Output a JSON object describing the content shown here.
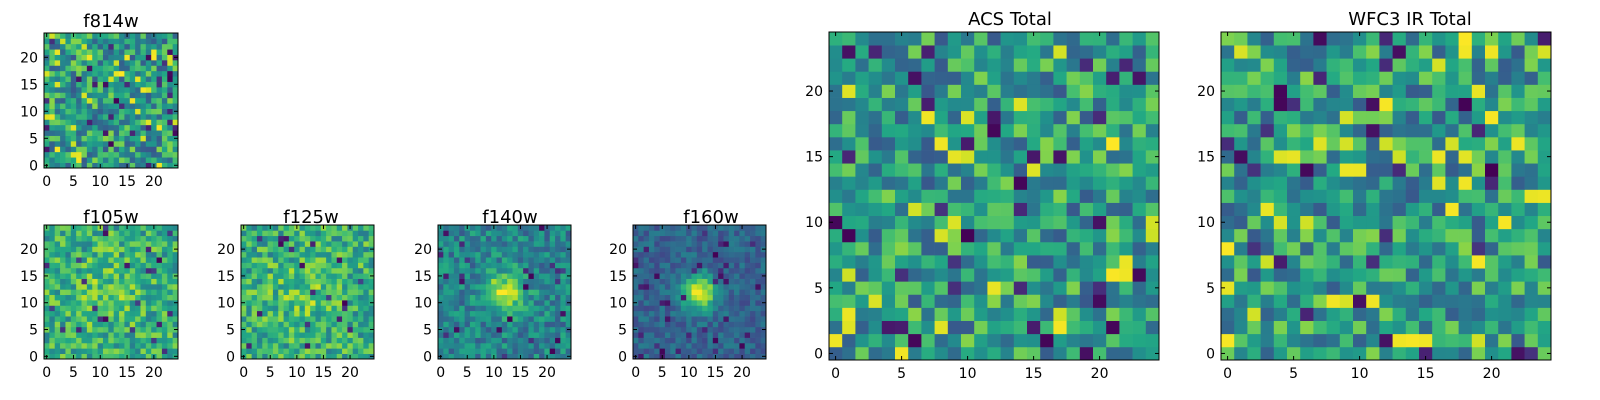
{
  "figure": {
    "colormap": "viridis"
  },
  "chart_data": [
    {
      "type": "heatmap",
      "id": "f814w",
      "title": "f814w",
      "grid_size": 25,
      "xlim": [
        -0.5,
        24.5
      ],
      "ylim": [
        -0.5,
        24.5
      ],
      "xticks": [
        0,
        5,
        10,
        15,
        20
      ],
      "yticks": [
        0,
        5,
        10,
        15,
        20
      ],
      "xtick_labels": [
        "0",
        "5",
        "10",
        "15",
        "20"
      ],
      "ytick_labels": [
        "0",
        "5",
        "10",
        "15",
        "20"
      ],
      "pattern": "noise",
      "value_range": [
        0,
        1
      ]
    },
    {
      "type": "heatmap",
      "id": "f105w",
      "title": "f105w",
      "grid_size": 25,
      "xlim": [
        -0.5,
        24.5
      ],
      "ylim": [
        -0.5,
        24.5
      ],
      "xticks": [
        0,
        5,
        10,
        15,
        20
      ],
      "yticks": [
        0,
        5,
        10,
        15,
        20
      ],
      "xtick_labels": [
        "0",
        "5",
        "10",
        "15",
        "20"
      ],
      "ytick_labels": [
        "0",
        "5",
        "10",
        "15",
        "20"
      ],
      "pattern": "faint-source",
      "value_range": [
        0,
        1
      ]
    },
    {
      "type": "heatmap",
      "id": "f125w",
      "title": "f125w",
      "grid_size": 25,
      "xlim": [
        -0.5,
        24.5
      ],
      "ylim": [
        -0.5,
        24.5
      ],
      "xticks": [
        0,
        5,
        10,
        15,
        20
      ],
      "yticks": [
        0,
        5,
        10,
        15,
        20
      ],
      "xtick_labels": [
        "0",
        "5",
        "10",
        "15",
        "20"
      ],
      "ytick_labels": [
        "0",
        "5",
        "10",
        "15",
        "20"
      ],
      "pattern": "faint-source",
      "value_range": [
        0,
        1
      ]
    },
    {
      "type": "heatmap",
      "id": "f140w",
      "title": "f140w",
      "grid_size": 25,
      "xlim": [
        -0.5,
        24.5
      ],
      "ylim": [
        -0.5,
        24.5
      ],
      "xticks": [
        0,
        5,
        10,
        15,
        20
      ],
      "yticks": [
        0,
        5,
        10,
        15,
        20
      ],
      "xtick_labels": [
        "0",
        "5",
        "10",
        "15",
        "20"
      ],
      "ytick_labels": [
        "0",
        "5",
        "10",
        "15",
        "20"
      ],
      "pattern": "central-source",
      "source_center": [
        12,
        12
      ],
      "value_range": [
        0,
        1
      ]
    },
    {
      "type": "heatmap",
      "id": "f160w",
      "title": "f160w",
      "grid_size": 25,
      "xlim": [
        -0.5,
        24.5
      ],
      "ylim": [
        -0.5,
        24.5
      ],
      "xticks": [
        0,
        5,
        10,
        15,
        20
      ],
      "yticks": [
        0,
        5,
        10,
        15,
        20
      ],
      "xtick_labels": [
        "0",
        "5",
        "10",
        "15",
        "20"
      ],
      "ytick_labels": [
        "0",
        "5",
        "10",
        "15",
        "20"
      ],
      "pattern": "bright-central-source",
      "source_center": [
        12,
        12
      ],
      "value_range": [
        0,
        1
      ]
    },
    {
      "type": "heatmap",
      "id": "acs_total",
      "title": "ACS Total",
      "grid_size": 25,
      "xlim": [
        -0.5,
        24.5
      ],
      "ylim": [
        -0.5,
        24.5
      ],
      "xticks": [
        0,
        5,
        10,
        15,
        20
      ],
      "yticks": [
        0,
        5,
        10,
        15,
        20
      ],
      "xtick_labels": [
        "0",
        "5",
        "10",
        "15",
        "20"
      ],
      "ytick_labels": [
        "0",
        "5",
        "10",
        "15",
        "20"
      ],
      "pattern": "noise",
      "value_range": [
        0,
        1
      ]
    },
    {
      "type": "heatmap",
      "id": "wfc3_ir_total",
      "title": "WFC3 IR Total",
      "grid_size": 25,
      "xlim": [
        -0.5,
        24.5
      ],
      "ylim": [
        -0.5,
        24.5
      ],
      "xticks": [
        0,
        5,
        10,
        15,
        20
      ],
      "yticks": [
        0,
        5,
        10,
        15,
        20
      ],
      "xtick_labels": [
        "0",
        "5",
        "10",
        "15",
        "20"
      ],
      "ytick_labels": [
        "0",
        "5",
        "10",
        "15",
        "20"
      ],
      "pattern": "noise",
      "value_range": [
        0,
        1
      ]
    }
  ]
}
